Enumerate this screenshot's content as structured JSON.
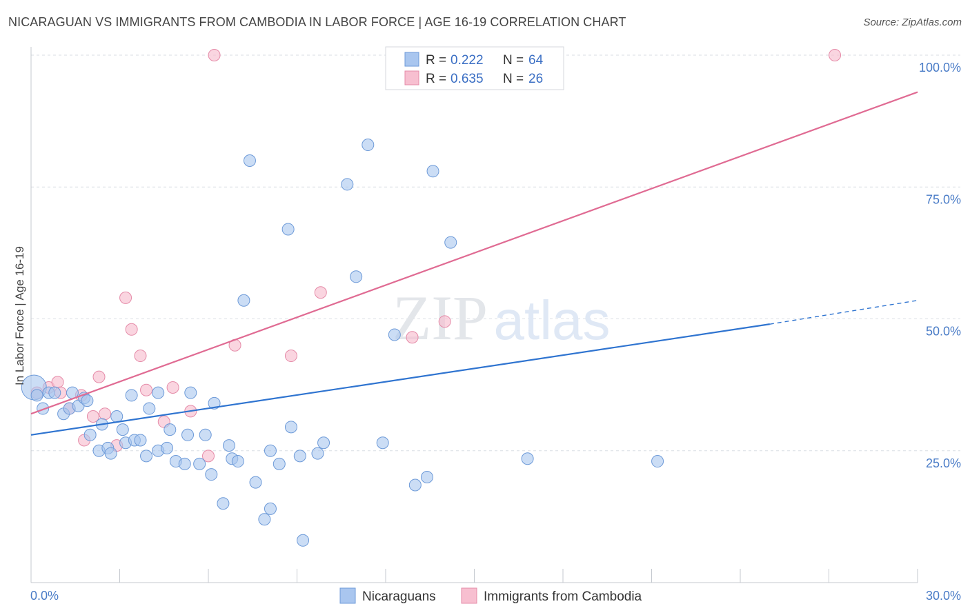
{
  "title": "NICARAGUAN VS IMMIGRANTS FROM CAMBODIA IN LABOR FORCE | AGE 16-19 CORRELATION CHART",
  "source": "Source: ZipAtlas.com",
  "watermark": {
    "zip": "ZIP",
    "atlas": "atlas"
  },
  "colors": {
    "blue_fill": "#a9c6ef",
    "blue_stroke": "#6d9ad8",
    "blue_line": "#2f74d0",
    "pink_fill": "#f7bfd0",
    "pink_stroke": "#e58ba8",
    "pink_line": "#e06b93",
    "tick_label": "#4a7cc7",
    "grid": "#d9dde3"
  },
  "legend": {
    "r_label": "R =",
    "n_label": "N =",
    "rows": [
      {
        "r": "0.222",
        "n": "64"
      },
      {
        "r": "0.635",
        "n": "26"
      }
    ]
  },
  "chart_data": {
    "type": "scatter",
    "title": "NICARAGUAN VS IMMIGRANTS FROM CAMBODIA IN LABOR FORCE | AGE 16-19 CORRELATION CHART",
    "xlabel": "",
    "ylabel": "In Labor Force | Age 16-19",
    "xlim": [
      0,
      30
    ],
    "ylim": [
      0,
      100
    ],
    "x_tick_labels": [
      "0.0%",
      "30.0%"
    ],
    "y_ticks": [
      25,
      50,
      75,
      100
    ],
    "y_tick_labels": [
      "25.0%",
      "50.0%",
      "75.0%",
      "100.0%"
    ],
    "series": [
      {
        "name": "Nicaraguans",
        "color": "#a9c6ef",
        "points": [
          [
            0.1,
            37.0
          ],
          [
            0.2,
            35.5
          ],
          [
            0.4,
            33.0
          ],
          [
            0.6,
            36.0
          ],
          [
            0.8,
            36.0
          ],
          [
            1.1,
            32.0
          ],
          [
            1.3,
            33.0
          ],
          [
            1.4,
            36.0
          ],
          [
            1.6,
            33.5
          ],
          [
            1.8,
            35.0
          ],
          [
            1.9,
            34.5
          ],
          [
            2.0,
            28.0
          ],
          [
            2.3,
            25.0
          ],
          [
            2.4,
            30.0
          ],
          [
            2.6,
            25.5
          ],
          [
            2.7,
            24.5
          ],
          [
            2.9,
            31.5
          ],
          [
            3.1,
            29.0
          ],
          [
            3.2,
            26.5
          ],
          [
            3.4,
            35.5
          ],
          [
            3.5,
            27.0
          ],
          [
            3.7,
            27.0
          ],
          [
            3.9,
            24.0
          ],
          [
            4.0,
            33.0
          ],
          [
            4.3,
            36.0
          ],
          [
            4.3,
            25.0
          ],
          [
            4.6,
            25.5
          ],
          [
            4.7,
            29.0
          ],
          [
            4.9,
            23.0
          ],
          [
            5.2,
            22.5
          ],
          [
            5.3,
            28.0
          ],
          [
            5.4,
            36.0
          ],
          [
            5.7,
            22.5
          ],
          [
            5.9,
            28.0
          ],
          [
            6.1,
            20.5
          ],
          [
            6.2,
            34.0
          ],
          [
            6.5,
            15.0
          ],
          [
            6.7,
            26.0
          ],
          [
            6.8,
            23.5
          ],
          [
            7.0,
            23.0
          ],
          [
            7.2,
            53.5
          ],
          [
            7.4,
            80.0
          ],
          [
            7.6,
            19.0
          ],
          [
            7.9,
            12.0
          ],
          [
            8.1,
            14.0
          ],
          [
            8.1,
            25.0
          ],
          [
            8.4,
            22.5
          ],
          [
            8.7,
            67.0
          ],
          [
            8.8,
            29.5
          ],
          [
            9.1,
            24.0
          ],
          [
            9.2,
            8.0
          ],
          [
            9.7,
            24.5
          ],
          [
            9.9,
            26.5
          ],
          [
            10.7,
            75.5
          ],
          [
            11.0,
            58.0
          ],
          [
            11.4,
            83.0
          ],
          [
            11.9,
            26.5
          ],
          [
            12.3,
            47.0
          ],
          [
            13.0,
            18.5
          ],
          [
            13.4,
            20.0
          ],
          [
            13.6,
            78.0
          ],
          [
            14.2,
            64.5
          ],
          [
            16.8,
            23.5
          ],
          [
            21.2,
            23.0
          ]
        ]
      },
      {
        "name": "Immigrants from Cambodia",
        "color": "#f7bfd0",
        "points": [
          [
            0.2,
            36.0
          ],
          [
            0.6,
            37.0
          ],
          [
            0.9,
            38.0
          ],
          [
            1.0,
            36.0
          ],
          [
            1.3,
            33.0
          ],
          [
            1.7,
            35.5
          ],
          [
            1.8,
            27.0
          ],
          [
            2.1,
            31.5
          ],
          [
            2.3,
            39.0
          ],
          [
            2.5,
            32.0
          ],
          [
            2.9,
            26.0
          ],
          [
            3.2,
            54.0
          ],
          [
            3.4,
            48.0
          ],
          [
            3.7,
            43.0
          ],
          [
            3.9,
            36.5
          ],
          [
            4.5,
            30.5
          ],
          [
            4.8,
            37.0
          ],
          [
            5.4,
            32.5
          ],
          [
            6.0,
            24.0
          ],
          [
            6.2,
            100.0
          ],
          [
            6.9,
            45.0
          ],
          [
            8.8,
            43.0
          ],
          [
            9.8,
            55.0
          ],
          [
            12.9,
            46.5
          ],
          [
            14.0,
            49.5
          ],
          [
            27.2,
            100.0
          ]
        ]
      }
    ],
    "trend_lines": [
      {
        "series": "Nicaraguans",
        "x_start": 0,
        "y_start": 28.0,
        "x_solid_end": 25.0,
        "y_solid_end": 49.0,
        "x_end": 30,
        "y_end": 53.5
      },
      {
        "series": "Immigrants from Cambodia",
        "x_start": 0,
        "y_start": 32.0,
        "x_end": 30,
        "y_end": 93.0
      }
    ]
  }
}
